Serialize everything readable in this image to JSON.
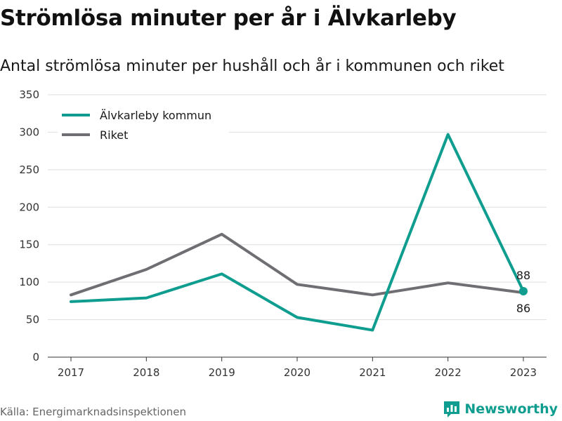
{
  "header": {
    "title": "Strömlösa minuter per år i Älvkarleby",
    "subtitle": "Antal strömlösa minuter per hushåll och år i kommunen och riket"
  },
  "footer": {
    "source": "Källa: Energimarknadsinspektionen",
    "brand": "Newsworthy"
  },
  "colors": {
    "municipality": "#0f9d8f",
    "country": "#6e6e73",
    "grid": "#dddddd",
    "axis": "#333333"
  },
  "chart_data": {
    "type": "line",
    "title": "Strömlösa minuter per år i Älvkarleby",
    "subtitle": "Antal strömlösa minuter per hushåll och år i kommunen och riket",
    "x": [
      "2017",
      "2018",
      "2019",
      "2020",
      "2021",
      "2022",
      "2023"
    ],
    "series": [
      {
        "name": "Älvkarleby kommun",
        "color": "#0f9d8f",
        "values": [
          74,
          79,
          111,
          53,
          36,
          297,
          88
        ]
      },
      {
        "name": "Riket",
        "color": "#6e6e73",
        "values": [
          83,
          117,
          164,
          97,
          83,
          99,
          86
        ]
      }
    ],
    "y_ticks": [
      0,
      50,
      100,
      150,
      200,
      250,
      300,
      350
    ],
    "ylim": [
      0,
      350
    ],
    "grid": true,
    "legend_position": "top-left",
    "end_labels": {
      "municipality": "88",
      "country": "86"
    }
  }
}
